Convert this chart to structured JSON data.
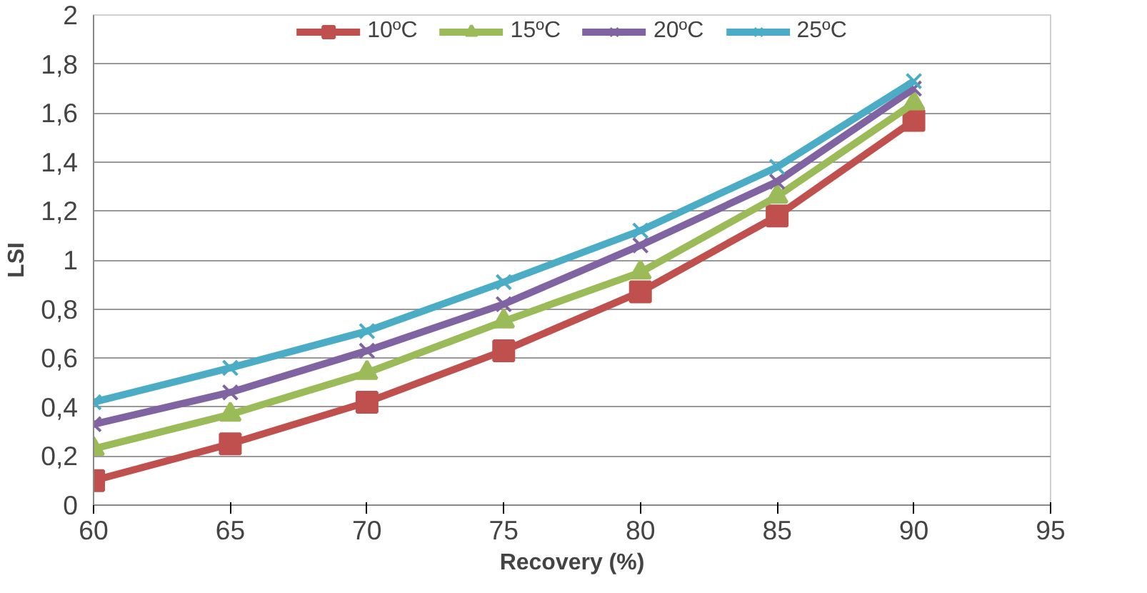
{
  "chart_data": {
    "type": "line",
    "xlabel": "Recovery (%)",
    "ylabel": "LSI",
    "x": [
      60,
      65,
      70,
      75,
      80,
      85,
      90
    ],
    "xlim": [
      60,
      95
    ],
    "xticks": [
      60,
      65,
      70,
      75,
      80,
      85,
      90,
      95
    ],
    "ylim": [
      0,
      2
    ],
    "yticks": [
      0,
      {
        "value": 0.2,
        "label": "0,2"
      },
      {
        "value": 0.4,
        "label": "0,4"
      },
      {
        "value": 0.6,
        "label": "0,6"
      },
      {
        "value": 0.8,
        "label": "0,8"
      },
      1,
      {
        "value": 1.2,
        "label": "1,2"
      },
      {
        "value": 1.4,
        "label": "1,4"
      },
      {
        "value": 1.6,
        "label": "1,6"
      },
      {
        "value": 1.8,
        "label": "1,8"
      },
      2
    ],
    "grid": "y",
    "legend": "top",
    "line_style": "solid",
    "series": [
      {
        "name": "10ºC",
        "color": "#c0504d",
        "marker": "square",
        "values": [
          0.1,
          0.25,
          0.42,
          0.63,
          0.87,
          1.18,
          1.57
        ]
      },
      {
        "name": "15ºC",
        "color": "#9bbb59",
        "marker": "triangle",
        "values": [
          0.23,
          0.37,
          0.54,
          0.75,
          0.95,
          1.26,
          1.64
        ]
      },
      {
        "name": "20ºC",
        "color": "#8064a2",
        "marker": "cross",
        "values": [
          0.33,
          0.46,
          0.63,
          0.82,
          1.06,
          1.32,
          1.7
        ]
      },
      {
        "name": "25ºC",
        "color": "#4bacc6",
        "marker": "cross",
        "values": [
          0.42,
          0.56,
          0.71,
          0.91,
          1.12,
          1.38,
          1.73
        ]
      }
    ]
  }
}
